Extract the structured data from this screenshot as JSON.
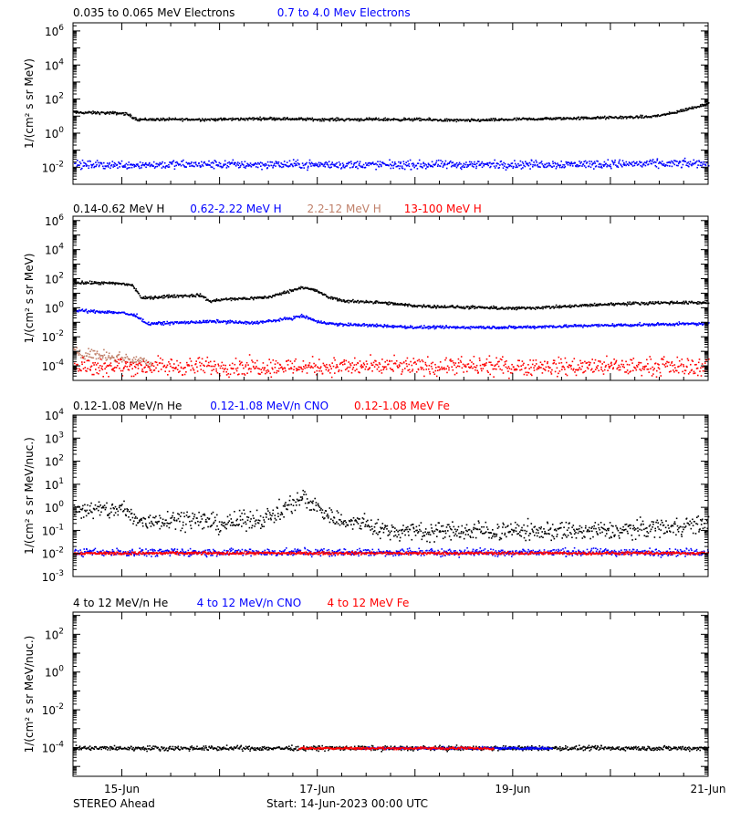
{
  "footer": {
    "left": "STEREO Ahead",
    "center": "Start: 14-Jun-2023 00:00 UTC"
  },
  "colors": {
    "black": "#000000",
    "blue": "#0000ff",
    "tan": "#c0806a",
    "red": "#ff0000",
    "background": "#ffffff"
  },
  "chart_data": [
    {
      "type": "scatter",
      "legend": [
        {
          "label": "0.035 to 0.065 MeV Electrons",
          "color": "#000000"
        },
        {
          "label": "0.7 to 4.0 Mev Electrons",
          "color": "#0000ff"
        }
      ],
      "ylabel": "1/(cm² s sr MeV)",
      "yscale": "log",
      "ylim": [
        0.001,
        3000000
      ],
      "ytick_exponents": [
        -2,
        0,
        2,
        4,
        6
      ],
      "x_unit": "days since start",
      "xlim": [
        0.5,
        7.0
      ],
      "xticks": [
        {
          "x": 1,
          "label": "15-Jun"
        },
        {
          "x": 3,
          "label": "17-Jun"
        },
        {
          "x": 5,
          "label": "19-Jun"
        },
        {
          "x": 7,
          "label": "21-Jun"
        }
      ],
      "series": [
        {
          "name": "0.035 to 0.065 MeV Electrons",
          "color": "#000000",
          "scatter": 0.04,
          "x": [
            0.5,
            0.8,
            1.0,
            1.05,
            1.15,
            1.5,
            2.0,
            2.5,
            3.0,
            3.5,
            4.0,
            4.5,
            5.0,
            5.5,
            6.0,
            6.4,
            6.6,
            6.8,
            7.0
          ],
          "y": [
            18,
            17,
            16,
            14,
            7,
            7,
            7,
            8,
            7,
            7,
            7,
            6,
            7,
            8,
            9,
            10,
            15,
            30,
            60
          ]
        },
        {
          "name": "0.7 to 4.0 Mev Electrons",
          "color": "#0000ff",
          "scatter": 0.12,
          "x": [
            0.5,
            2.0,
            4.0,
            6.0,
            7.0
          ],
          "y": [
            0.015,
            0.016,
            0.015,
            0.017,
            0.018
          ]
        }
      ]
    },
    {
      "type": "scatter",
      "legend": [
        {
          "label": "0.14-0.62 MeV H",
          "color": "#000000"
        },
        {
          "label": "0.62-2.22 MeV H",
          "color": "#0000ff"
        },
        {
          "label": "2.2-12 MeV H",
          "color": "#c0806a"
        },
        {
          "label": "13-100 MeV H",
          "color": "#ff0000"
        }
      ],
      "ylabel": "1/(cm² s sr MeV)",
      "yscale": "log",
      "ylim": [
        1e-05,
        2000000
      ],
      "ytick_exponents": [
        -4,
        -2,
        0,
        2,
        4,
        6
      ],
      "x_unit": "days since start",
      "xlim": [
        0.5,
        7.0
      ],
      "xticks": [
        {
          "x": 1,
          "label": "15-Jun"
        },
        {
          "x": 3,
          "label": "17-Jun"
        },
        {
          "x": 5,
          "label": "19-Jun"
        },
        {
          "x": 7,
          "label": "21-Jun"
        }
      ],
      "series": [
        {
          "name": "0.14-0.62 MeV H",
          "color": "#000000",
          "scatter": 0.05,
          "x": [
            0.5,
            0.8,
            1.0,
            1.1,
            1.2,
            1.5,
            1.8,
            1.9,
            2.0,
            2.3,
            2.5,
            2.7,
            2.85,
            3.0,
            3.1,
            3.3,
            3.5,
            3.8,
            4.0,
            4.5,
            5.0,
            5.5,
            6.0,
            6.5,
            7.0
          ],
          "y": [
            60,
            55,
            50,
            40,
            5,
            7,
            8,
            3,
            4,
            5,
            6,
            15,
            30,
            15,
            6,
            3,
            3,
            2,
            1.5,
            1.2,
            1,
            1.3,
            2,
            2.5,
            2.5
          ]
        },
        {
          "name": "0.62-2.22 MeV H",
          "color": "#0000ff",
          "scatter": 0.05,
          "x": [
            0.5,
            0.8,
            1.0,
            1.15,
            1.25,
            1.5,
            2.0,
            2.3,
            2.5,
            2.7,
            2.85,
            3.0,
            3.2,
            3.5,
            4.0,
            4.5,
            5.0,
            5.5,
            6.0,
            6.5,
            7.0
          ],
          "y": [
            0.7,
            0.6,
            0.5,
            0.3,
            0.09,
            0.1,
            0.13,
            0.1,
            0.13,
            0.2,
            0.3,
            0.12,
            0.08,
            0.07,
            0.05,
            0.05,
            0.05,
            0.06,
            0.07,
            0.08,
            0.09
          ]
        },
        {
          "name": "2.2-12 MeV H",
          "color": "#c0806a",
          "scatter": 0.18,
          "x": [
            0.5,
            0.7,
            0.9,
            1.1,
            1.3
          ],
          "y": [
            0.001,
            0.0007,
            0.0005,
            0.0003,
            0.0002
          ]
        },
        {
          "name": "13-100 MeV H",
          "color": "#ff0000",
          "scatter": 0.3,
          "x": [
            0.5,
            2.0,
            4.0,
            6.0,
            7.0
          ],
          "y": [
            0.0001,
            0.0001,
            0.0001,
            0.0001,
            0.0001
          ]
        }
      ]
    },
    {
      "type": "scatter",
      "legend": [
        {
          "label": "0.12-1.08 MeV/n He",
          "color": "#000000"
        },
        {
          "label": "0.12-1.08 MeV/n CNO",
          "color": "#0000ff"
        },
        {
          "label": "0.12-1.08 MeV Fe",
          "color": "#ff0000"
        }
      ],
      "ylabel": "1/(cm² s sr MeV/nuc.)",
      "yscale": "log",
      "ylim": [
        0.001,
        10000
      ],
      "ytick_exponents": [
        -3,
        -2,
        -1,
        0,
        1,
        2,
        3,
        4
      ],
      "x_unit": "days since start",
      "xlim": [
        0.5,
        7.0
      ],
      "xticks": [
        {
          "x": 1,
          "label": "15-Jun"
        },
        {
          "x": 3,
          "label": "17-Jun"
        },
        {
          "x": 5,
          "label": "19-Jun"
        },
        {
          "x": 7,
          "label": "21-Jun"
        }
      ],
      "series": [
        {
          "name": "0.12-1.08 MeV/n He",
          "color": "#000000",
          "scatter": 0.2,
          "x": [
            0.5,
            0.8,
            1.0,
            1.1,
            1.2,
            1.5,
            1.8,
            2.0,
            2.3,
            2.5,
            2.7,
            2.85,
            3.0,
            3.2,
            3.5,
            3.7,
            4.0,
            5.0,
            6.0,
            6.5,
            7.0
          ],
          "y": [
            0.9,
            0.8,
            0.9,
            0.4,
            0.25,
            0.35,
            0.3,
            0.2,
            0.3,
            0.4,
            1.2,
            3.0,
            1.0,
            0.3,
            0.2,
            0.1,
            0.1,
            0.1,
            0.1,
            0.15,
            0.2
          ]
        },
        {
          "name": "0.12-1.08 MeV/n CNO",
          "color": "#0000ff",
          "scatter": 0.08,
          "x": [
            0.5,
            2.0,
            4.0,
            6.0,
            7.0
          ],
          "y": [
            0.012,
            0.012,
            0.012,
            0.012,
            0.012
          ]
        },
        {
          "name": "0.12-1.08 MeV Fe",
          "color": "#ff0000",
          "scatter": 0.03,
          "x": [
            0.5,
            2.0,
            4.0,
            6.0,
            7.0
          ],
          "y": [
            0.011,
            0.011,
            0.011,
            0.011,
            0.011
          ]
        }
      ]
    },
    {
      "type": "scatter",
      "legend": [
        {
          "label": "4 to 12 MeV/n He",
          "color": "#000000"
        },
        {
          "label": "4 to 12 MeV/n CNO",
          "color": "#0000ff"
        },
        {
          "label": "4 to 12 MeV Fe",
          "color": "#ff0000"
        }
      ],
      "ylabel": "1/(cm² s sr MeV/nuc.)",
      "yscale": "log",
      "ylim": [
        3e-06,
        1500
      ],
      "ytick_exponents": [
        -4,
        -2,
        0,
        2
      ],
      "x_unit": "days since start",
      "xlim": [
        0.5,
        7.0
      ],
      "xticks": [
        {
          "x": 1,
          "label": "15-Jun"
        },
        {
          "x": 3,
          "label": "17-Jun"
        },
        {
          "x": 5,
          "label": "19-Jun"
        },
        {
          "x": 7,
          "label": "21-Jun"
        }
      ],
      "series": [
        {
          "name": "4 to 12 MeV/n He",
          "color": "#000000",
          "scatter": 0.06,
          "x": [
            0.5,
            2.0,
            4.0,
            6.0,
            7.0
          ],
          "y": [
            0.0001,
            0.0001,
            0.0001,
            0.0001,
            0.0001
          ]
        },
        {
          "name": "4 to 12 MeV/n CNO",
          "color": "#0000ff",
          "scatter": 0.03,
          "x": [
            3.4,
            4.5,
            5.4
          ],
          "y": [
            0.0001,
            0.0001,
            0.0001
          ]
        },
        {
          "name": "4 to 12 MeV Fe",
          "color": "#ff0000",
          "scatter": 0.03,
          "x": [
            2.8,
            4.8
          ],
          "y": [
            0.0001,
            0.0001
          ]
        }
      ]
    }
  ]
}
